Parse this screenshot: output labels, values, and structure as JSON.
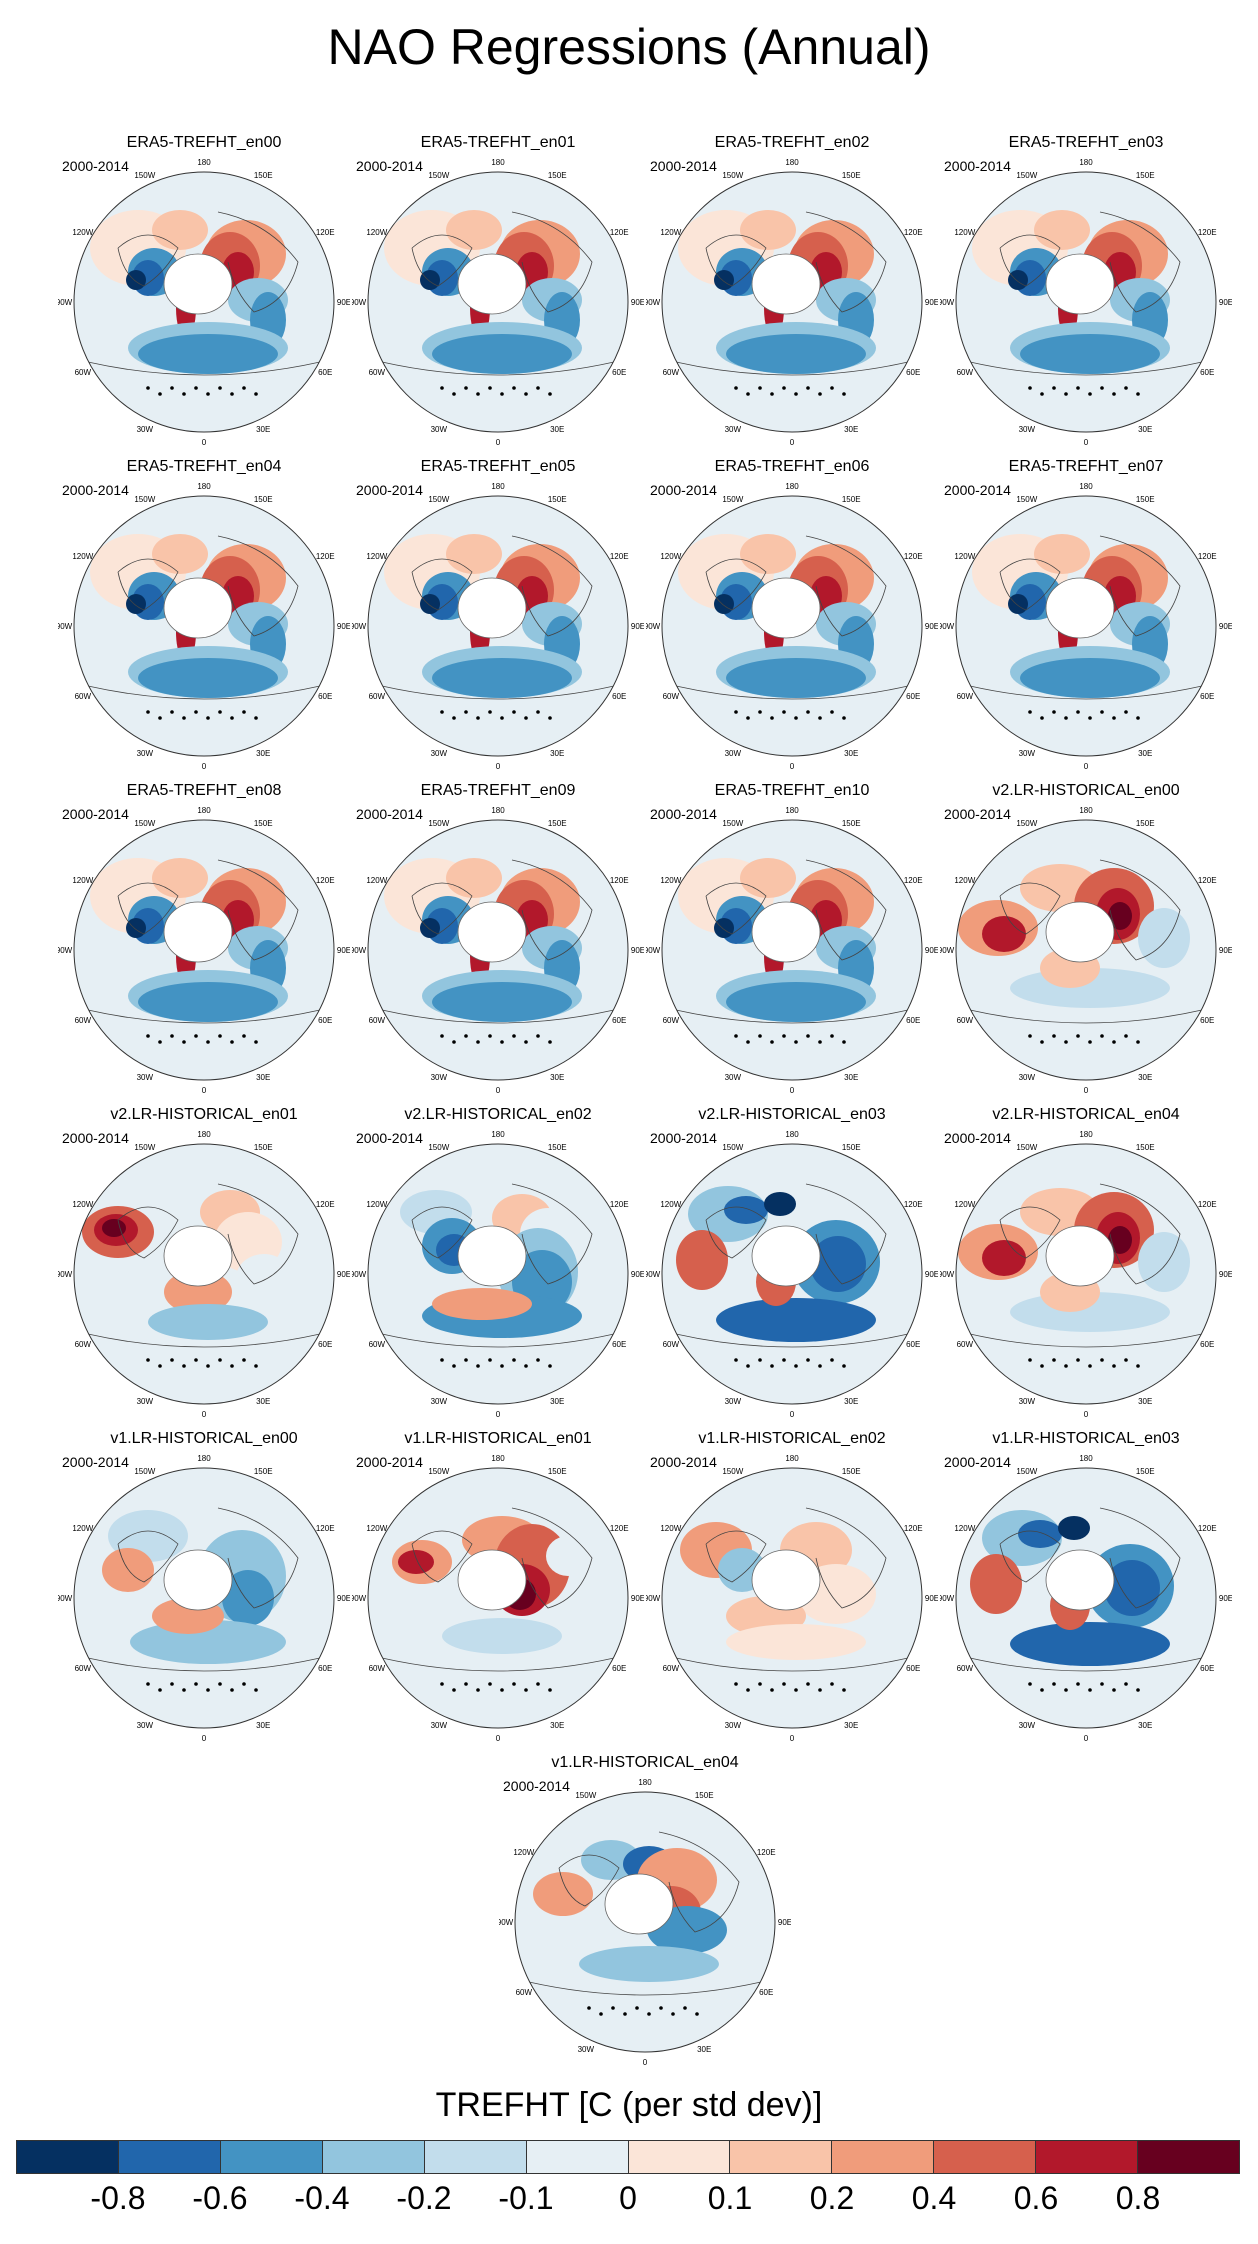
{
  "title": "NAO Regressions (Annual)",
  "period": "2000-2014",
  "lon_labels": [
    "180",
    "150W",
    "150E",
    "120W",
    "120E",
    "90W",
    "90E",
    "60W",
    "60E",
    "30W",
    "30E",
    "0"
  ],
  "panels": [
    {
      "name": "ERA5-TREFHT_en00",
      "pattern": "era5"
    },
    {
      "name": "ERA5-TREFHT_en01",
      "pattern": "era5"
    },
    {
      "name": "ERA5-TREFHT_en02",
      "pattern": "era5"
    },
    {
      "name": "ERA5-TREFHT_en03",
      "pattern": "era5"
    },
    {
      "name": "ERA5-TREFHT_en04",
      "pattern": "era5"
    },
    {
      "name": "ERA5-TREFHT_en05",
      "pattern": "era5"
    },
    {
      "name": "ERA5-TREFHT_en06",
      "pattern": "era5"
    },
    {
      "name": "ERA5-TREFHT_en07",
      "pattern": "era5"
    },
    {
      "name": "ERA5-TREFHT_en08",
      "pattern": "era5"
    },
    {
      "name": "ERA5-TREFHT_en09",
      "pattern": "era5"
    },
    {
      "name": "ERA5-TREFHT_en10",
      "pattern": "era5"
    },
    {
      "name": "v2.LR-HISTORICAL_en00",
      "pattern": "v2a"
    },
    {
      "name": "v2.LR-HISTORICAL_en01",
      "pattern": "v2b"
    },
    {
      "name": "v2.LR-HISTORICAL_en02",
      "pattern": "v2c"
    },
    {
      "name": "v2.LR-HISTORICAL_en03",
      "pattern": "v2d"
    },
    {
      "name": "v2.LR-HISTORICAL_en04",
      "pattern": "v2a"
    },
    {
      "name": "v1.LR-HISTORICAL_en00",
      "pattern": "v1a"
    },
    {
      "name": "v1.LR-HISTORICAL_en01",
      "pattern": "v1b"
    },
    {
      "name": "v1.LR-HISTORICAL_en02",
      "pattern": "v1c"
    },
    {
      "name": "v1.LR-HISTORICAL_en03",
      "pattern": "v2d"
    },
    {
      "name": "v1.LR-HISTORICAL_en04",
      "pattern": "v1d"
    }
  ],
  "colorbar": {
    "title": "TREFHT [C (per std dev)]",
    "colors": [
      "#053061",
      "#2166ac",
      "#4393c3",
      "#92c5de",
      "#c2ddec",
      "#e6eff4",
      "#fbe5d8",
      "#f9c4a9",
      "#f09c7b",
      "#d6604d",
      "#b2182b",
      "#67001f"
    ],
    "labels": [
      "-0.8",
      "-0.6",
      "-0.4",
      "-0.2",
      "-0.1",
      "0",
      "0.1",
      "0.2",
      "0.4",
      "0.6",
      "0.8"
    ]
  }
}
